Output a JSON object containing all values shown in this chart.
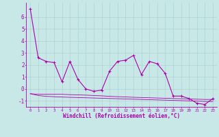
{
  "xlabel": "Windchill (Refroidissement éolien,°C)",
  "x": [
    0,
    1,
    2,
    3,
    4,
    5,
    6,
    7,
    8,
    9,
    10,
    11,
    12,
    13,
    14,
    15,
    16,
    17,
    18,
    19,
    20,
    21,
    22,
    23
  ],
  "line1": [
    6.7,
    2.6,
    2.3,
    2.2,
    0.6,
    2.3,
    0.8,
    0.0,
    -0.2,
    -0.1,
    1.5,
    2.3,
    2.4,
    2.8,
    1.2,
    2.3,
    2.1,
    1.3,
    -0.6,
    -0.6,
    -0.8,
    -1.2,
    -1.3,
    -0.8
  ],
  "line2": [
    -0.4,
    -0.45,
    -0.45,
    -0.45,
    -0.45,
    -0.48,
    -0.5,
    -0.52,
    -0.55,
    -0.58,
    -0.62,
    -0.65,
    -0.67,
    -0.7,
    -0.72,
    -0.74,
    -0.76,
    -0.78,
    -0.8,
    -0.82,
    -0.84,
    -0.86,
    -0.88,
    -0.88
  ],
  "line3": [
    -0.4,
    -0.55,
    -0.62,
    -0.65,
    -0.68,
    -0.7,
    -0.72,
    -0.74,
    -0.76,
    -0.78,
    -0.8,
    -0.82,
    -0.84,
    -0.86,
    -0.88,
    -0.9,
    -0.92,
    -0.94,
    -0.96,
    -0.98,
    -1.0,
    -1.02,
    -1.05,
    -1.05
  ],
  "line_color": "#AA00AA",
  "bg_color": "#C8E8E8",
  "grid_color": "#AACCCC",
  "ylim": [
    -1.5,
    7.2
  ],
  "xlim": [
    -0.5,
    23.5
  ],
  "yticks": [
    -1,
    0,
    1,
    2,
    3,
    4,
    5,
    6
  ],
  "xticks": [
    0,
    1,
    2,
    3,
    4,
    5,
    6,
    7,
    8,
    9,
    10,
    11,
    12,
    13,
    14,
    15,
    16,
    17,
    18,
    19,
    20,
    21,
    22,
    23
  ]
}
